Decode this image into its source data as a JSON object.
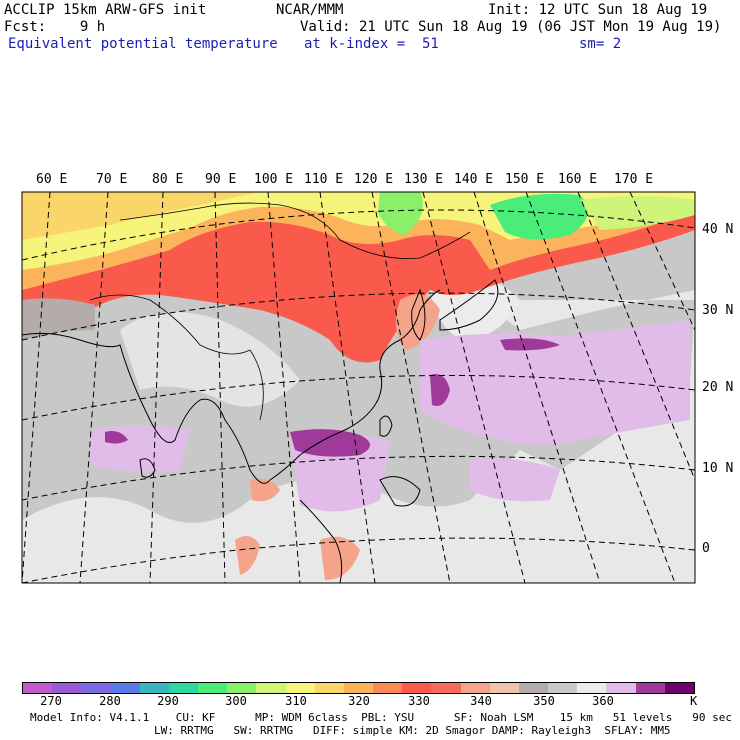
{
  "header": {
    "model": "ACCLIP 15km ARW-GFS init",
    "org": "NCAR/MMM",
    "init": "Init: 12 UTC Sun 18 Aug 19",
    "fcst": "Fcst:    9 h",
    "valid": "Valid: 21 UTC Sun 18 Aug 19 (06 JST Mon 19 Aug 19)",
    "field": "Equivalent potential temperature",
    "level": "at k-index =  51",
    "smooth": "sm= 2"
  },
  "map": {
    "lon_labels": [
      "60 E",
      "70 E",
      "80 E",
      "90 E",
      "100 E",
      "110 E",
      "120 E",
      "130 E",
      "140 E",
      "150 E",
      "160 E",
      "170 E"
    ],
    "lat_labels": [
      "40 N",
      "30 N",
      "20 N",
      "10 N",
      "0"
    ]
  },
  "colorbar": {
    "colors": [
      "#c25ccc",
      "#9a5ad4",
      "#7a6ce0",
      "#5a7ae8",
      "#3ab6c0",
      "#2ad8a0",
      "#4aec7a",
      "#8af06a",
      "#cef47a",
      "#f6f47a",
      "#fad66a",
      "#fbb45c",
      "#fb8a54",
      "#fa5a4c",
      "#fa6a5c",
      "#f4a48a",
      "#f0c4ac",
      "#b4aca8",
      "#c8c8c8",
      "#ececec",
      "#e2bce8",
      "#a03a9a",
      "#6c006c"
    ],
    "ticks": [
      "270",
      "280",
      "290",
      "300",
      "310",
      "320",
      "330",
      "340",
      "350",
      "360"
    ],
    "unit": "K"
  },
  "footer": {
    "line1": "Model Info: V4.1.1    CU: KF      MP: WDM 6class  PBL: YSU      SF: Noah LSM    15 km   51 levels   90 sec",
    "line2": "LW: RRTMG   SW: RRTMG   DIFF: simple KM: 2D Smagor DAMP: Rayleigh3  SFLAY: MM5"
  }
}
